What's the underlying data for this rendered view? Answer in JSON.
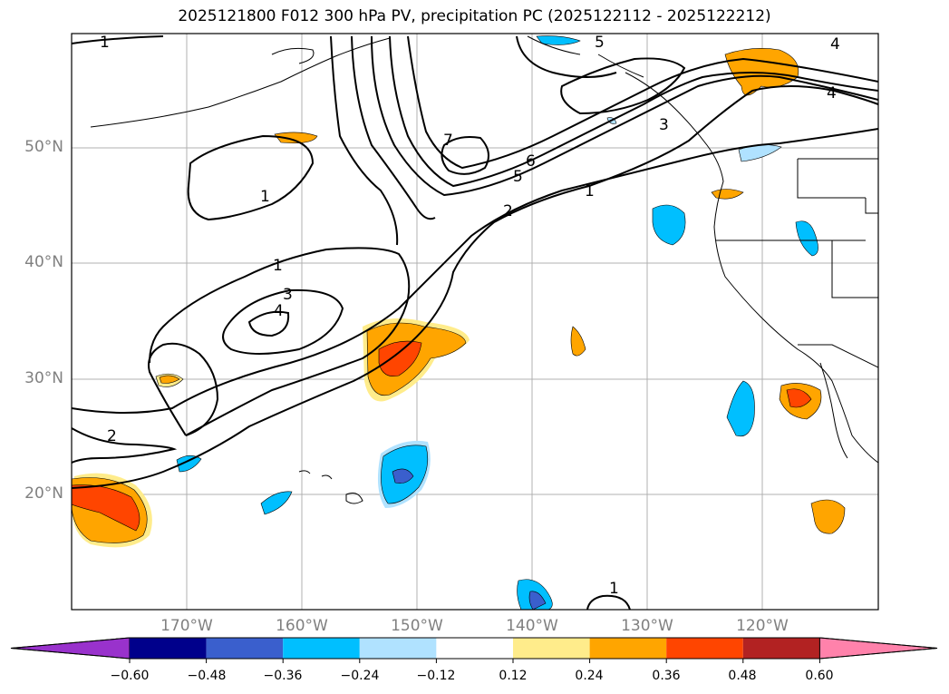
{
  "title": "2025121800 F012 300 hPa PV, precipitation PC (2025122112 - 2025122212)",
  "lat_labels": [
    "50°N",
    "40°N",
    "30°N",
    "20°N"
  ],
  "lon_labels": [
    "170°W",
    "160°W",
    "150°W",
    "140°W",
    "130°W",
    "120°W"
  ],
  "colorbar": {
    "ticks": [
      "−0.60",
      "−0.48",
      "−0.36",
      "−0.24",
      "−0.12",
      "0.12",
      "0.24",
      "0.36",
      "0.48",
      "0.60"
    ],
    "colors": [
      "#9932cc",
      "#00008b",
      "#3a5fcd",
      "#00bfff",
      "#b0e2ff",
      "#ffffff",
      "#ffec8b",
      "#ffa500",
      "#ff4500",
      "#b22222",
      "#ff82ab"
    ]
  },
  "contour_labels": [
    "1",
    "1",
    "1",
    "1",
    "1",
    "2",
    "2",
    "3",
    "4",
    "4",
    "4",
    "5",
    "5",
    "6",
    "7",
    "3"
  ]
}
